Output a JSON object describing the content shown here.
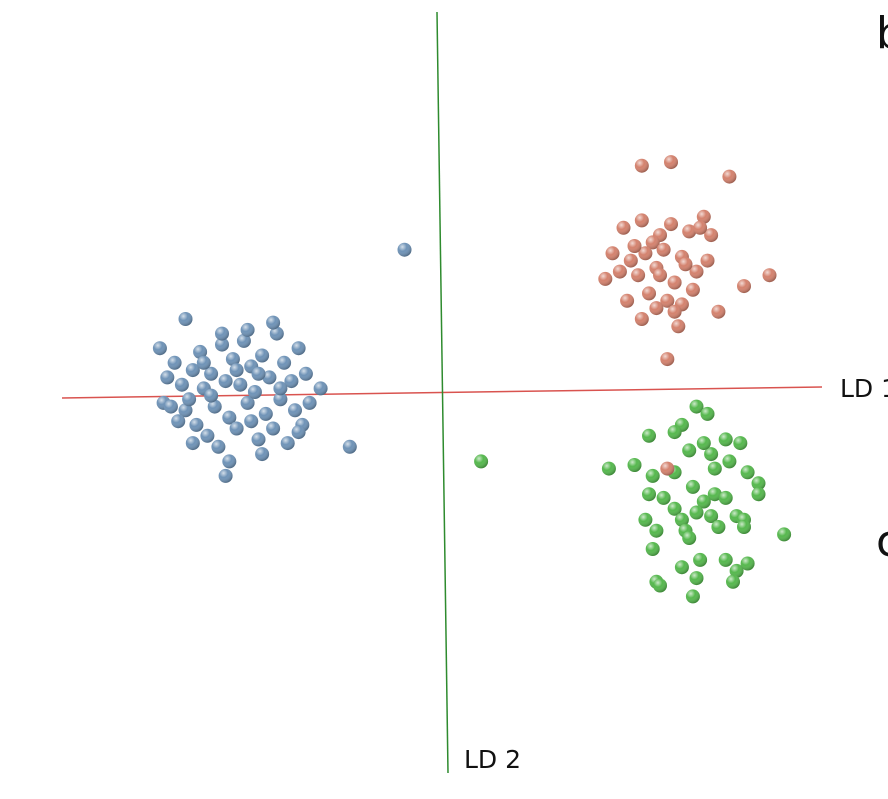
{
  "chart_data": {
    "type": "scatter",
    "title": "",
    "xlabel": "LD 1",
    "ylabel": "LD 2",
    "xlim": [
      -10,
      10
    ],
    "ylim": [
      -10,
      10
    ],
    "grid": false,
    "legend": "none",
    "axis_colors": {
      "x": "#d9534f",
      "y": "#2e8b2e"
    },
    "panel_letters": [
      "b",
      "c"
    ],
    "series": [
      {
        "color": "#6f93b7",
        "points": [
          [
            -7.5,
            0.4
          ],
          [
            -7.3,
            0.8
          ],
          [
            -7.1,
            0.2
          ],
          [
            -7.6,
            -0.3
          ],
          [
            -7.0,
            -0.5
          ],
          [
            -6.8,
            0.6
          ],
          [
            -6.9,
            -0.2
          ],
          [
            -7.2,
            -0.8
          ],
          [
            -6.6,
            1.1
          ],
          [
            -6.5,
            0.1
          ],
          [
            -6.7,
            -0.9
          ],
          [
            -6.3,
            0.5
          ],
          [
            -6.2,
            -0.4
          ],
          [
            -6.0,
            1.3
          ],
          [
            -6.4,
            -1.2
          ],
          [
            -5.9,
            0.3
          ],
          [
            -5.8,
            -0.7
          ],
          [
            -5.7,
            0.9
          ],
          [
            -6.1,
            -1.5
          ],
          [
            -5.5,
            0.2
          ],
          [
            -5.6,
            -1.0
          ],
          [
            -5.4,
            1.4
          ],
          [
            -5.3,
            -0.3
          ],
          [
            -5.2,
            0.7
          ],
          [
            -5.0,
            -1.3
          ],
          [
            -5.1,
            0.0
          ],
          [
            -4.9,
            1.0
          ],
          [
            -4.8,
            -0.6
          ],
          [
            -4.7,
            0.4
          ],
          [
            -4.6,
            -1.0
          ],
          [
            -4.5,
            1.6
          ],
          [
            -4.4,
            -0.2
          ],
          [
            -4.3,
            0.8
          ],
          [
            -4.2,
            -1.4
          ],
          [
            -4.1,
            0.3
          ],
          [
            -4.0,
            -0.5
          ],
          [
            -3.9,
            1.2
          ],
          [
            -3.8,
            -0.9
          ],
          [
            -3.7,
            0.5
          ],
          [
            -3.6,
            -0.3
          ],
          [
            -6.8,
            -1.4
          ],
          [
            -5.8,
            -1.9
          ],
          [
            -5.3,
            1.7
          ],
          [
            -4.6,
            1.9
          ],
          [
            -5.9,
            -2.3
          ],
          [
            -7.7,
            1.2
          ],
          [
            -7.4,
            -0.4
          ],
          [
            -6.5,
            0.8
          ],
          [
            -4.9,
            -1.7
          ],
          [
            -3.9,
            -1.1
          ],
          [
            -3.3,
            0.1
          ],
          [
            -2.5,
            -1.5
          ],
          [
            -1.0,
            3.9
          ],
          [
            -7.0,
            2.0
          ],
          [
            -6.0,
            1.6
          ],
          [
            -5.6,
            0.6
          ],
          [
            -5.0,
            0.5
          ],
          [
            -4.4,
            0.1
          ],
          [
            -6.3,
            -0.1
          ],
          [
            -5.2,
            -0.8
          ]
        ]
      },
      {
        "color": "#d4826e",
        "points": [
          [
            5.5,
            6.2
          ],
          [
            6.3,
            6.3
          ],
          [
            7.9,
            5.9
          ],
          [
            5.0,
            4.5
          ],
          [
            5.5,
            4.7
          ],
          [
            6.0,
            4.3
          ],
          [
            6.3,
            4.6
          ],
          [
            6.8,
            4.4
          ],
          [
            7.2,
            4.8
          ],
          [
            5.8,
            4.1
          ],
          [
            4.7,
            3.8
          ],
          [
            5.2,
            3.6
          ],
          [
            6.1,
            3.9
          ],
          [
            6.6,
            3.7
          ],
          [
            7.4,
            4.3
          ],
          [
            5.9,
            3.4
          ],
          [
            4.5,
            3.1
          ],
          [
            5.4,
            3.2
          ],
          [
            6.4,
            3.0
          ],
          [
            6.9,
            2.8
          ],
          [
            7.0,
            3.3
          ],
          [
            5.7,
            2.7
          ],
          [
            6.2,
            2.5
          ],
          [
            6.6,
            2.4
          ],
          [
            8.3,
            2.9
          ],
          [
            9.0,
            3.2
          ],
          [
            5.5,
            2.0
          ],
          [
            6.5,
            1.8
          ],
          [
            7.6,
            2.2
          ],
          [
            6.2,
            0.9
          ],
          [
            4.9,
            3.3
          ],
          [
            5.6,
            3.8
          ],
          [
            7.1,
            4.5
          ],
          [
            5.1,
            2.5
          ],
          [
            6.0,
            3.2
          ],
          [
            5.3,
            4.0
          ],
          [
            6.7,
            3.5
          ],
          [
            5.9,
            2.3
          ],
          [
            7.3,
            3.6
          ],
          [
            6.4,
            2.2
          ]
        ]
      },
      {
        "color": "#56b84e",
        "points": [
          [
            7.0,
            -0.4
          ],
          [
            7.3,
            -0.6
          ],
          [
            6.6,
            -0.9
          ],
          [
            5.7,
            -1.2
          ],
          [
            7.8,
            -1.3
          ],
          [
            6.8,
            -1.6
          ],
          [
            7.4,
            -1.7
          ],
          [
            8.2,
            -1.4
          ],
          [
            7.9,
            -1.9
          ],
          [
            5.3,
            -2.0
          ],
          [
            6.4,
            -2.2
          ],
          [
            7.5,
            -2.1
          ],
          [
            8.4,
            -2.2
          ],
          [
            5.8,
            -2.3
          ],
          [
            6.9,
            -2.6
          ],
          [
            7.5,
            -2.8
          ],
          [
            8.7,
            -2.5
          ],
          [
            5.7,
            -2.8
          ],
          [
            6.1,
            -2.9
          ],
          [
            7.8,
            -2.9
          ],
          [
            8.7,
            -2.8
          ],
          [
            7.2,
            -3.0
          ],
          [
            6.4,
            -3.2
          ],
          [
            7.0,
            -3.3
          ],
          [
            8.1,
            -3.4
          ],
          [
            5.6,
            -3.5
          ],
          [
            6.6,
            -3.5
          ],
          [
            7.4,
            -3.4
          ],
          [
            8.3,
            -3.5
          ],
          [
            5.9,
            -3.8
          ],
          [
            6.7,
            -3.8
          ],
          [
            7.6,
            -3.7
          ],
          [
            8.3,
            -3.7
          ],
          [
            6.8,
            -4.0
          ],
          [
            5.8,
            -4.3
          ],
          [
            7.1,
            -4.6
          ],
          [
            7.8,
            -4.6
          ],
          [
            8.4,
            -4.7
          ],
          [
            6.6,
            -4.8
          ],
          [
            8.1,
            -4.9
          ],
          [
            5.9,
            -5.2
          ],
          [
            7.0,
            -5.1
          ],
          [
            8.0,
            -5.2
          ],
          [
            6.0,
            -5.3
          ],
          [
            6.9,
            -5.6
          ],
          [
            9.4,
            -3.9
          ],
          [
            1.1,
            -1.9
          ],
          [
            4.6,
            -2.1
          ],
          [
            6.4,
            -1.1
          ],
          [
            7.2,
            -1.4
          ]
        ]
      },
      {
        "color": "#d4826e",
        "points": [
          [
            6.2,
            -2.1
          ]
        ]
      }
    ]
  }
}
